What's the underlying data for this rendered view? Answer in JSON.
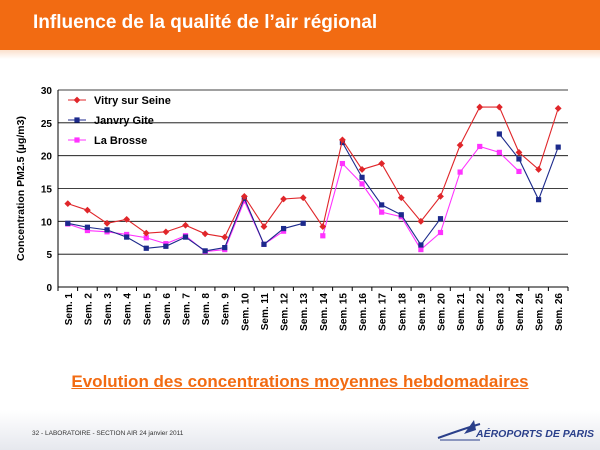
{
  "slide": {
    "title": "Influence de la qualité de l’air régional",
    "subtitle": "Evolution des concentrations moyennes hebdomadaires",
    "footer": "32 - LABORATOIRE - SECTION AIR 24 janvier 2011",
    "logo_text": "AÉROPORTS DE PARIS"
  },
  "colors": {
    "header": "#f26b12",
    "vitry": "#e0262a",
    "janvry": "#1c2a8c",
    "brosse": "#ff33ff"
  },
  "chart_data": {
    "type": "line",
    "ylabel": "Concentration PM2.5 (µg/m3)",
    "ylim": [
      0,
      30
    ],
    "yticks": [
      0,
      5,
      10,
      15,
      20,
      25,
      30
    ],
    "grid": "horizontal",
    "legend_position": "top-left",
    "categories": [
      "Sem. 1",
      "Sem. 2",
      "Sem. 3",
      "Sem. 4",
      "Sem. 5",
      "Sem. 6",
      "Sem. 7",
      "Sem. 8",
      "Sem. 9",
      "Sem. 10",
      "Sem. 11",
      "Sem. 12",
      "Sem. 13",
      "Sem. 14",
      "Sem. 15",
      "Sem. 16",
      "Sem. 17",
      "Sem. 18",
      "Sem. 19",
      "Sem. 20",
      "Sem. 21",
      "Sem. 22",
      "Sem. 23",
      "Sem. 24",
      "Sem. 25",
      "Sem. 26"
    ],
    "series": [
      {
        "name": "Vitry sur Seine",
        "marker": "diamond",
        "color": "#e0262a",
        "values": [
          12.7,
          11.7,
          9.7,
          10.3,
          8.2,
          8.4,
          9.4,
          8.1,
          7.6,
          13.8,
          9.2,
          13.4,
          13.6,
          9.2,
          22.4,
          17.9,
          18.8,
          13.6,
          10.0,
          13.8,
          21.6,
          27.4,
          27.4,
          20.5,
          17.9,
          27.2
        ]
      },
      {
        "name": "Janvry Gite",
        "marker": "square",
        "color": "#1c2a8c",
        "values": [
          9.7,
          9.1,
          8.7,
          7.6,
          5.9,
          6.2,
          7.6,
          5.5,
          6.0,
          13.5,
          6.5,
          8.9,
          9.7,
          null,
          22.0,
          16.7,
          12.5,
          11.0,
          6.4,
          10.4,
          null,
          null,
          23.3,
          19.5,
          13.3,
          21.3
        ]
      },
      {
        "name": "La Brosse",
        "marker": "square",
        "color": "#ff33ff",
        "values": [
          9.6,
          8.6,
          8.4,
          8.0,
          7.5,
          6.6,
          7.8,
          5.4,
          5.7,
          13.1,
          6.5,
          8.5,
          null,
          7.8,
          18.8,
          15.7,
          11.4,
          10.7,
          5.7,
          8.3,
          17.5,
          21.4,
          20.5,
          17.6,
          null,
          null
        ]
      }
    ]
  }
}
